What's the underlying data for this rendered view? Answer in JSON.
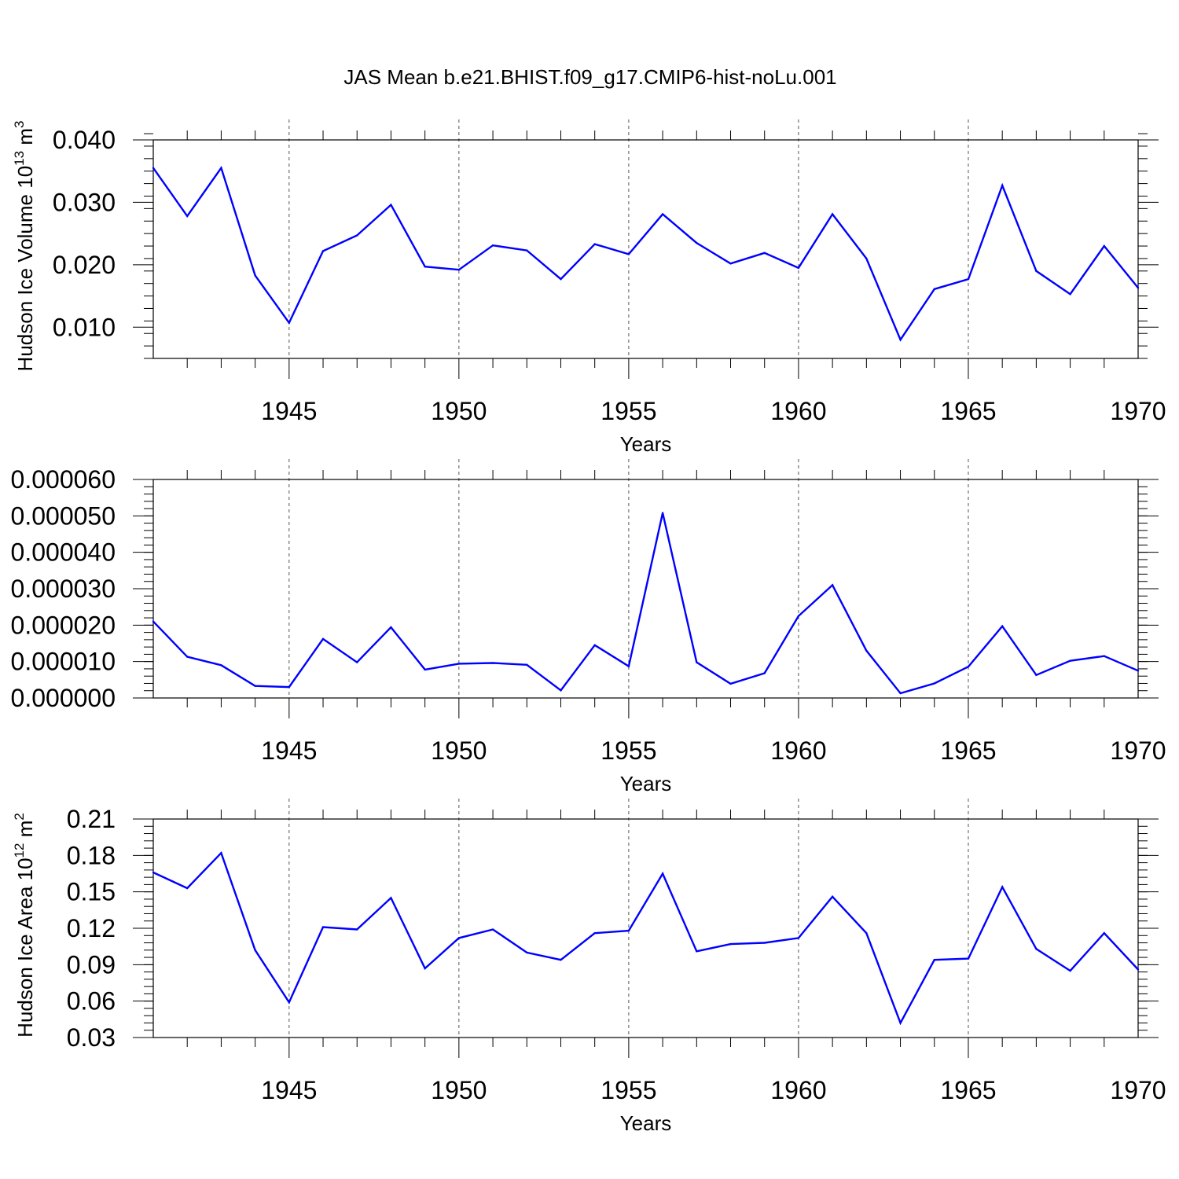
{
  "figure": {
    "title": "JAS Mean b.e21.BHIST.f09_g17.CMIP6-hist-noLu.001"
  },
  "chart_data": [
    {
      "type": "line",
      "title": "",
      "xlabel": "Years",
      "ylabel_parts": [
        "Hudson Ice Volume 10",
        "13",
        " m",
        "3"
      ],
      "xlim": [
        1941,
        1970
      ],
      "ylim": [
        0.005,
        0.04
      ],
      "xticks": [
        1945,
        1950,
        1955,
        1960,
        1965,
        1970
      ],
      "yticks": [
        0.01,
        0.02,
        0.03,
        0.04
      ],
      "ytick_labels": [
        "0.010",
        "0.020",
        "0.030",
        "0.040"
      ],
      "yminor_step": 0.002,
      "grid": "dashed vertical at major x ticks",
      "color": "#0000ff",
      "x": [
        1941,
        1942,
        1943,
        1944,
        1945,
        1946,
        1947,
        1948,
        1949,
        1950,
        1951,
        1952,
        1953,
        1954,
        1955,
        1956,
        1957,
        1958,
        1959,
        1960,
        1961,
        1962,
        1963,
        1964,
        1965,
        1966,
        1967,
        1968,
        1969,
        1970
      ],
      "values": [
        0.0355,
        0.0278,
        0.0355,
        0.0183,
        0.0107,
        0.0222,
        0.0247,
        0.0296,
        0.0197,
        0.0192,
        0.0231,
        0.0223,
        0.0177,
        0.0233,
        0.0217,
        0.0281,
        0.0235,
        0.0202,
        0.0219,
        0.0195,
        0.0281,
        0.021,
        0.008,
        0.0161,
        0.0177,
        0.0327,
        0.019,
        0.0153,
        0.023,
        0.0163
      ]
    },
    {
      "type": "line",
      "title": "",
      "xlabel": "Years",
      "ylabel_parts": [],
      "xlim": [
        1941,
        1970
      ],
      "ylim": [
        0.0,
        6e-05
      ],
      "xticks": [
        1945,
        1950,
        1955,
        1960,
        1965,
        1970
      ],
      "yticks": [
        0.0,
        1e-05,
        2e-05,
        3e-05,
        4e-05,
        5e-05,
        6e-05
      ],
      "ytick_labels": [
        "0.000000",
        "0.000010",
        "0.000020",
        "0.000030",
        "0.000040",
        "0.000050",
        "0.000060"
      ],
      "yminor_step": 2e-06,
      "grid": "dashed vertical at major x ticks",
      "color": "#0000ff",
      "x": [
        1941,
        1942,
        1943,
        1944,
        1945,
        1946,
        1947,
        1948,
        1949,
        1950,
        1951,
        1952,
        1953,
        1954,
        1955,
        1956,
        1957,
        1958,
        1959,
        1960,
        1961,
        1962,
        1963,
        1964,
        1965,
        1966,
        1967,
        1968,
        1969,
        1970
      ],
      "values": [
        2.1e-05,
        1.13e-05,
        9e-06,
        3.3e-06,
        3e-06,
        1.62e-05,
        9.8e-06,
        1.94e-05,
        7.8e-06,
        9.4e-06,
        9.6e-06,
        9.1e-06,
        2.1e-06,
        1.45e-05,
        8.7e-06,
        5.08e-05,
        9.8e-06,
        3.9e-06,
        6.8e-06,
        2.25e-05,
        3.1e-05,
        1.3e-05,
        1.3e-06,
        4e-06,
        8.6e-06,
        1.97e-05,
        6.3e-06,
        1.02e-05,
        1.15e-05,
        7.5e-06
      ]
    },
    {
      "type": "line",
      "title": "",
      "xlabel": "Years",
      "ylabel_parts": [
        "Hudson Ice Area 10",
        "12",
        " m",
        "2"
      ],
      "xlim": [
        1941,
        1970
      ],
      "ylim": [
        0.03,
        0.21
      ],
      "xticks": [
        1945,
        1950,
        1955,
        1960,
        1965,
        1970
      ],
      "yticks": [
        0.03,
        0.06,
        0.09,
        0.12,
        0.15,
        0.18,
        0.21
      ],
      "ytick_labels": [
        "0.03",
        "0.06",
        "0.09",
        "0.12",
        "0.15",
        "0.18",
        "0.21"
      ],
      "yminor_step": 0.006,
      "grid": "dashed vertical at major x ticks",
      "color": "#0000ff",
      "x": [
        1941,
        1942,
        1943,
        1944,
        1945,
        1946,
        1947,
        1948,
        1949,
        1950,
        1951,
        1952,
        1953,
        1954,
        1955,
        1956,
        1957,
        1958,
        1959,
        1960,
        1961,
        1962,
        1963,
        1964,
        1965,
        1966,
        1967,
        1968,
        1969,
        1970
      ],
      "values": [
        0.166,
        0.153,
        0.182,
        0.102,
        0.059,
        0.121,
        0.119,
        0.145,
        0.087,
        0.112,
        0.119,
        0.1,
        0.094,
        0.116,
        0.118,
        0.165,
        0.101,
        0.107,
        0.108,
        0.112,
        0.146,
        0.116,
        0.042,
        0.094,
        0.095,
        0.154,
        0.103,
        0.085,
        0.116,
        0.086
      ]
    }
  ]
}
